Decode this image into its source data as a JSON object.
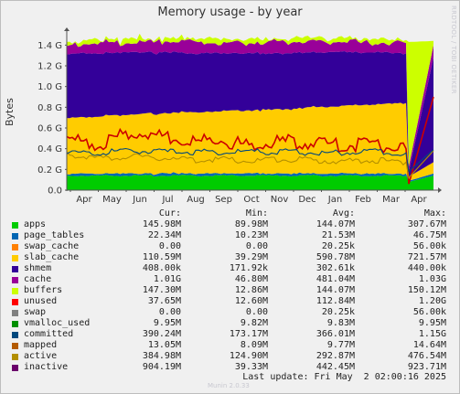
{
  "title": "Memory usage - by year",
  "side_label": "RRDTOOL / TOBI OETIKER",
  "footer_brand": "Munin 2.0.33",
  "last_update": "Last update: Fri May  2 02:00:16 2025",
  "legend_headers": {
    "cur": "Cur:",
    "min": "Min:",
    "avg": "Avg:",
    "max": "Max:"
  },
  "legend": [
    {
      "name": "apps",
      "color": "#00cc00",
      "cur": "145.98M",
      "min": "89.98M",
      "avg": "144.07M",
      "max": "307.67M"
    },
    {
      "name": "page_tables",
      "color": "#0066b3",
      "cur": "22.34M",
      "min": "10.23M",
      "avg": "21.53M",
      "max": "46.75M"
    },
    {
      "name": "swap_cache",
      "color": "#ff8000",
      "cur": "0.00",
      "min": "0.00",
      "avg": "20.25k",
      "max": "56.00k"
    },
    {
      "name": "slab_cache",
      "color": "#ffcc00",
      "cur": "110.59M",
      "min": "39.29M",
      "avg": "590.78M",
      "max": "721.57M"
    },
    {
      "name": "shmem",
      "color": "#330099",
      "cur": "408.00k",
      "min": "171.92k",
      "avg": "302.61k",
      "max": "440.00k"
    },
    {
      "name": "cache",
      "color": "#990099",
      "cur": "1.01G",
      "min": "46.80M",
      "avg": "481.04M",
      "max": "1.03G"
    },
    {
      "name": "buffers",
      "color": "#ccff00",
      "cur": "147.30M",
      "min": "12.86M",
      "avg": "144.07M",
      "max": "150.12M"
    },
    {
      "name": "unused",
      "color": "#ff0000",
      "cur": "37.65M",
      "min": "12.60M",
      "avg": "112.84M",
      "max": "1.20G"
    },
    {
      "name": "swap",
      "color": "#808080",
      "cur": "0.00",
      "min": "0.00",
      "avg": "20.25k",
      "max": "56.00k"
    },
    {
      "name": "vmalloc_used",
      "color": "#008f00",
      "cur": "9.95M",
      "min": "9.82M",
      "avg": "9.83M",
      "max": "9.95M"
    },
    {
      "name": "committed",
      "color": "#00487d",
      "cur": "390.24M",
      "min": "173.17M",
      "avg": "366.01M",
      "max": "1.15G"
    },
    {
      "name": "mapped",
      "color": "#b35a00",
      "cur": "13.05M",
      "min": "8.09M",
      "avg": "9.77M",
      "max": "14.64M"
    },
    {
      "name": "active",
      "color": "#b38f00",
      "cur": "384.98M",
      "min": "124.90M",
      "avg": "292.87M",
      "max": "476.54M"
    },
    {
      "name": "inactive",
      "color": "#6b006b",
      "cur": "904.19M",
      "min": "39.33M",
      "avg": "442.45M",
      "max": "923.71M"
    }
  ],
  "chart_data": {
    "type": "area",
    "title": "Memory usage - by year",
    "ylabel": "Bytes",
    "ylim": [
      0,
      1.5
    ],
    "y_unit": "G",
    "yticks": [
      0,
      0.2,
      0.4,
      0.6,
      0.8,
      1.0,
      1.2,
      1.4
    ],
    "ytick_labels": [
      "0.0",
      "0.2 G",
      "0.4 G",
      "0.6 G",
      "0.8 G",
      "1.0 G",
      "1.2 G",
      "1.4 G"
    ],
    "x_labels": [
      "Apr",
      "May",
      "Jun",
      "Jul",
      "Aug",
      "Sep",
      "Oct",
      "Nov",
      "Dec",
      "Jan",
      "Feb",
      "Mar",
      "Apr"
    ],
    "grid": true,
    "stacked_series": [
      {
        "name": "apps",
        "color": "#00cc00",
        "values": [
          0.14,
          0.14,
          0.14,
          0.14,
          0.14,
          0.14,
          0.14,
          0.14,
          0.14,
          0.14,
          0.14,
          0.14,
          0.08,
          0.14
        ]
      },
      {
        "name": "page_tables",
        "color": "#0066b3",
        "values": [
          0.02,
          0.02,
          0.02,
          0.02,
          0.02,
          0.02,
          0.02,
          0.02,
          0.02,
          0.02,
          0.02,
          0.02,
          0.01,
          0.02
        ]
      },
      {
        "name": "slab_cache",
        "color": "#ffcc00",
        "values": [
          0.54,
          0.55,
          0.57,
          0.58,
          0.59,
          0.6,
          0.61,
          0.62,
          0.64,
          0.65,
          0.67,
          0.68,
          0.04,
          0.11
        ]
      },
      {
        "name": "cache",
        "color": "#330099",
        "values": [
          0.62,
          0.61,
          0.6,
          0.59,
          0.57,
          0.56,
          0.55,
          0.54,
          0.53,
          0.52,
          0.5,
          0.48,
          0.05,
          1.01
        ]
      },
      {
        "name": "cache-top",
        "color": "#990099",
        "values": [
          0.08,
          0.1,
          0.09,
          0.1,
          0.11,
          0.09,
          0.1,
          0.11,
          0.09,
          0.1,
          0.09,
          0.1,
          0.05,
          0.12
        ]
      },
      {
        "name": "unused",
        "color": "#ccff00",
        "values": [
          0.04,
          0.03,
          0.04,
          0.03,
          0.03,
          0.04,
          0.03,
          0.03,
          0.04,
          0.03,
          0.04,
          0.03,
          1.2,
          0.04
        ]
      }
    ],
    "line_series": [
      {
        "name": "inactive",
        "color": "#cc0000",
        "values": [
          0.5,
          0.44,
          0.56,
          0.52,
          0.46,
          0.48,
          0.43,
          0.47,
          0.45,
          0.43,
          0.44,
          0.4,
          0.06,
          0.9
        ]
      },
      {
        "name": "active",
        "color": "#b38f00",
        "values": [
          0.35,
          0.3,
          0.33,
          0.31,
          0.29,
          0.3,
          0.28,
          0.3,
          0.29,
          0.28,
          0.29,
          0.27,
          0.12,
          0.38
        ]
      },
      {
        "name": "committed",
        "color": "#00487d",
        "values": [
          0.37,
          0.36,
          0.38,
          0.37,
          0.37,
          0.36,
          0.37,
          0.37,
          0.36,
          0.36,
          0.37,
          0.36,
          0.18,
          0.39
        ]
      }
    ]
  }
}
